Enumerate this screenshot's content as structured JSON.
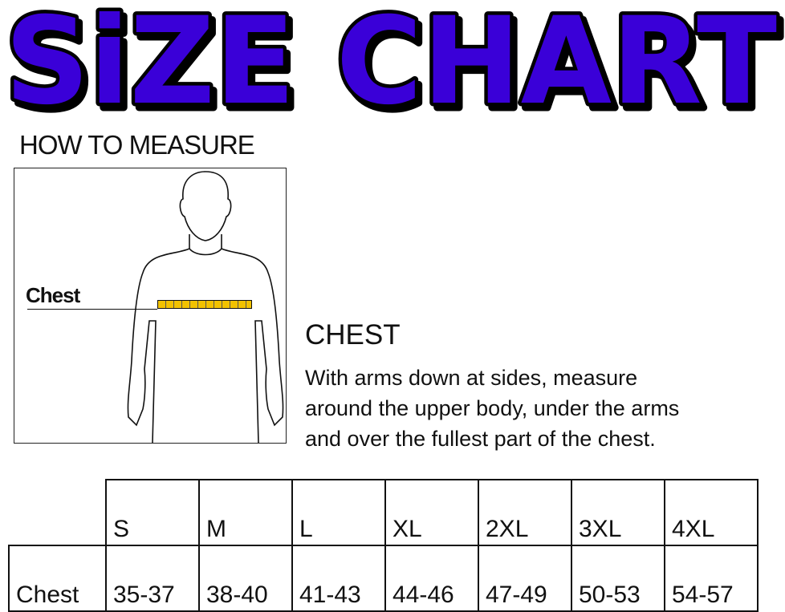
{
  "title": "SiZE CHART",
  "title_color": "#3a00d8",
  "how_to_measure": "HOW TO MEASURE",
  "figure": {
    "chest_label": "Chest",
    "tape_color": "#f2c200"
  },
  "chest_section": {
    "heading": "CHEST",
    "lines": [
      "With arms down at sides, measure",
      "around the upper body, under the arms",
      "and over the fullest part of the chest."
    ]
  },
  "table": {
    "sizes": [
      "S",
      "M",
      "L",
      "XL",
      "2XL",
      "3XL",
      "4XL"
    ],
    "rows": [
      {
        "label": "Chest",
        "values": [
          "35-37",
          "38-40",
          "41-43",
          "44-46",
          "47-49",
          "50-53",
          "54-57"
        ]
      }
    ]
  }
}
